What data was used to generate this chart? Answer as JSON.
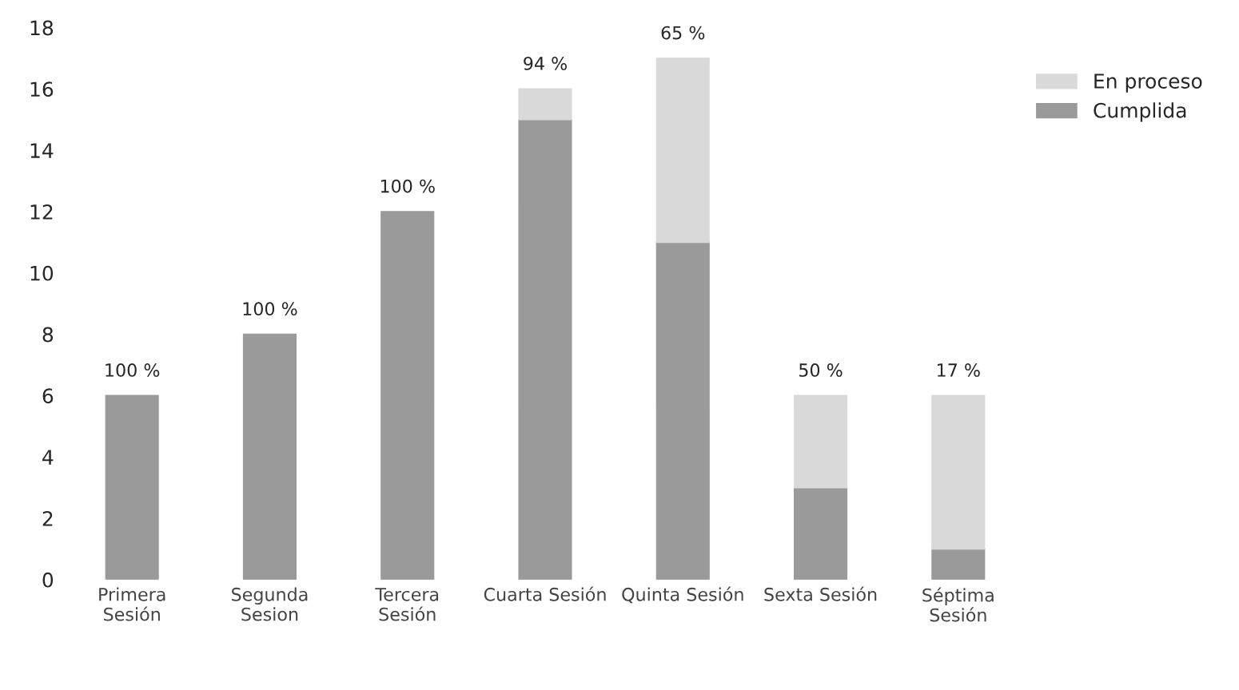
{
  "chart_data": {
    "type": "bar",
    "stacked": true,
    "categories": [
      "Primera\nSesión",
      "Segunda\nSesion",
      "Tercera\nSesión",
      "Cuarta Sesión",
      "Quinta Sesión",
      "Sexta Sesión",
      "Séptima\nSesión"
    ],
    "series": [
      {
        "name": "Cumplida",
        "color": "#9a9a9a",
        "values": [
          6,
          8,
          12,
          15,
          11,
          3,
          1
        ]
      },
      {
        "name": "En proceso",
        "color": "#d9d9d9",
        "values": [
          null,
          null,
          null,
          1,
          6,
          3,
          5
        ]
      }
    ],
    "annotations": [
      {
        "text": "100 %",
        "x": "Primera\nSesión",
        "y": 6
      },
      {
        "text": "100 %",
        "x": "Segunda\nSesion",
        "y": 8
      },
      {
        "text": "100 %",
        "x": "Tercera\nSesión",
        "y": 12
      },
      {
        "text": "94 %",
        "x": "Cuarta Sesión",
        "y": 16
      },
      {
        "text": "65 %",
        "x": "Quinta Sesión",
        "y": 17
      },
      {
        "text": "50 %",
        "x": "Sexta Sesión",
        "y": 6
      },
      {
        "text": "17 %",
        "x": "Séptima\nSesión",
        "y": 6
      }
    ],
    "ylim": [
      0,
      18
    ],
    "yticks": [
      0,
      2,
      4,
      6,
      8,
      10,
      12,
      14,
      16,
      18
    ],
    "grid": false,
    "legend": "top right"
  }
}
